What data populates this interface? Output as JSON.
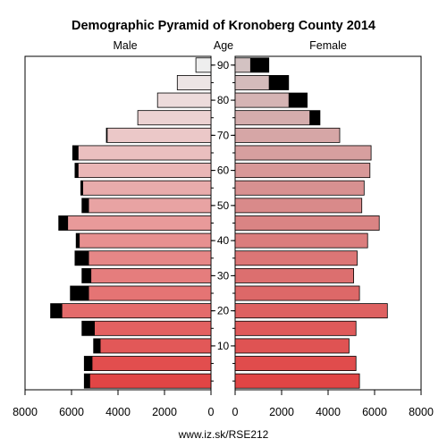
{
  "chart_data": {
    "type": "bar",
    "title": "Demographic Pyramid of Kronoberg County 2014",
    "left_label": "Male",
    "middle_label": "Age",
    "right_label": "Female",
    "footer": "www.iz.sk/RSE212",
    "age_tick_labels": [
      "10",
      "20",
      "30",
      "40",
      "50",
      "60",
      "70",
      "80",
      "90"
    ],
    "age_tick_values": [
      10,
      20,
      30,
      40,
      50,
      60,
      70,
      80,
      90
    ],
    "x_tick_labels_male": [
      "8000",
      "6000",
      "4000",
      "2000",
      "0"
    ],
    "x_tick_labels_female": [
      "0",
      "2000",
      "4000",
      "6000",
      "8000"
    ],
    "xlim": [
      0,
      8000
    ],
    "age_groups": [
      0,
      5,
      10,
      15,
      20,
      25,
      30,
      35,
      40,
      45,
      50,
      55,
      60,
      65,
      70,
      75,
      80,
      85,
      90
    ],
    "male_total": [
      5450,
      5450,
      5050,
      5550,
      6900,
      6050,
      5550,
      5850,
      5800,
      6550,
      5550,
      5600,
      5850,
      5950,
      4500,
      3150,
      2300,
      1450,
      650
    ],
    "male_excess": [
      250,
      350,
      300,
      550,
      500,
      800,
      400,
      600,
      150,
      400,
      300,
      100,
      150,
      250,
      50,
      0,
      0,
      0,
      0
    ],
    "female_total": [
      5350,
      5200,
      4900,
      5200,
      6550,
      5350,
      5100,
      5250,
      5700,
      6200,
      5450,
      5550,
      5800,
      5850,
      4500,
      3650,
      3100,
      2300,
      1450
    ],
    "female_excess": [
      0,
      0,
      0,
      0,
      0,
      0,
      0,
      0,
      0,
      0,
      0,
      0,
      0,
      0,
      0,
      450,
      800,
      850,
      800
    ],
    "colors": {
      "male_bar_start": "#e14545",
      "male_bar_end": "#eeeeee",
      "female_bar_start": "#e14545",
      "female_bar_end": "#d3c2c2",
      "excess": "#000000",
      "outline": "#000000"
    },
    "grid": false
  }
}
